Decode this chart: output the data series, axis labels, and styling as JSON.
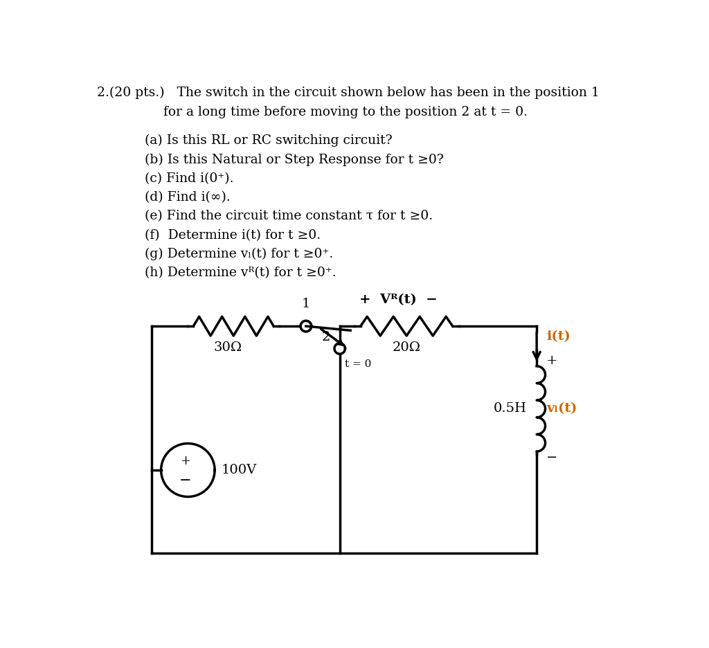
{
  "bg_color": "#ffffff",
  "text_color": "#000000",
  "title_line1": "2.(20 pts.)   The switch in the circuit shown below has been in the position 1",
  "title_line2": "                for a long time before moving to the position 2 at t = 0.",
  "questions": [
    "(a) Is this RL or RC switching circuit?",
    "(b) Is this Natural or Step Response for t ≥0?",
    "(c) Find i(0⁺).",
    "(d) Find i(∞).",
    "(e) Find the circuit time constant τ for t ≥0.",
    "(f)  Determine i(t) for t ≥0.",
    "(g) Determine vₗ(t) for t ≥0⁺.",
    "(h) Determine vᴿ(t) for t ≥0⁺."
  ],
  "circuit": {
    "R1_label": "30Ω",
    "R2_label": "20Ω",
    "L_label": "0.5H",
    "V_label": "100V",
    "switch_pos1": "1",
    "switch_pos2": "2",
    "switch_time": "t = 0",
    "vR_label": "+  Vᴿ(t)  −",
    "vL_label": "vₗ(t)",
    "i_label": "i(t)",
    "label_color": "#cc6600"
  }
}
